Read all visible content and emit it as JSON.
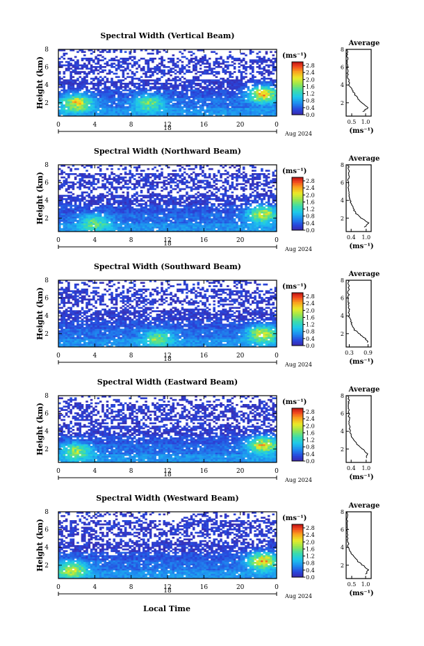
{
  "figure": {
    "date_label": "Aug 2024",
    "day_label": "18",
    "xlabel": "Local Time",
    "ylabel": "Height (km)",
    "colorbar_unit": "(ms⁻¹)",
    "avg_title": "Average",
    "avg_xlabel": "(ms⁻¹)"
  },
  "chart_data": [
    {
      "type": "heatmap",
      "title": "Spectral Width (Vertical Beam)",
      "x_ticks": [
        "0",
        "4",
        "8",
        "12",
        "16",
        "20",
        "0"
      ],
      "y_ticks": [
        "2",
        "4",
        "6",
        "8"
      ],
      "xlim": [
        0,
        24
      ],
      "ylim": [
        0.5,
        8
      ],
      "colorbar_ticks": [
        "0.0",
        "0.4",
        "0.8",
        "1.2",
        "1.6",
        "2.0",
        "2.4",
        "2.8"
      ],
      "colorbar_range": [
        0,
        3.0
      ],
      "avg_ticks": [
        "0.5",
        "1.0"
      ],
      "avg_xlim": [
        0.3,
        1.2
      ],
      "avg_profile": [
        {
          "h": 1.0,
          "v": 0.9
        },
        {
          "h": 1.5,
          "v": 1.1
        },
        {
          "h": 2.0,
          "v": 0.85
        },
        {
          "h": 2.5,
          "v": 0.7
        },
        {
          "h": 3.0,
          "v": 0.6
        },
        {
          "h": 3.5,
          "v": 0.5
        },
        {
          "h": 4.0,
          "v": 0.42
        },
        {
          "h": 5.0,
          "v": 0.36
        },
        {
          "h": 6.0,
          "v": 0.34
        },
        {
          "h": 7.0,
          "v": 0.34
        },
        {
          "h": 8.0,
          "v": 0.33
        }
      ],
      "hot_spots": [
        {
          "t": 2,
          "h": 2.0,
          "v": 1.9
        },
        {
          "t": 22.5,
          "h": 3.0,
          "v": 2.2
        },
        {
          "t": 10,
          "h": 2.0,
          "v": 1.3
        }
      ]
    },
    {
      "type": "heatmap",
      "title": "Spectral Width (Northward Beam)",
      "x_ticks": [
        "0",
        "4",
        "8",
        "12",
        "16",
        "20",
        "0"
      ],
      "y_ticks": [
        "2",
        "4",
        "6",
        "8"
      ],
      "xlim": [
        0,
        24
      ],
      "ylim": [
        0.5,
        8
      ],
      "colorbar_ticks": [
        "0.0",
        "0.4",
        "0.8",
        "1.2",
        "1.6",
        "2.0",
        "2.4",
        "2.8"
      ],
      "colorbar_range": [
        0,
        3.0
      ],
      "avg_ticks": [
        "0.4",
        "1.0"
      ],
      "avg_xlim": [
        0.2,
        1.2
      ],
      "avg_profile": [
        {
          "h": 1.0,
          "v": 0.95
        },
        {
          "h": 1.5,
          "v": 1.1
        },
        {
          "h": 2.0,
          "v": 0.8
        },
        {
          "h": 2.5,
          "v": 0.6
        },
        {
          "h": 3.0,
          "v": 0.5
        },
        {
          "h": 3.5,
          "v": 0.42
        },
        {
          "h": 4.0,
          "v": 0.36
        },
        {
          "h": 5.0,
          "v": 0.3
        },
        {
          "h": 6.0,
          "v": 0.28
        },
        {
          "h": 7.0,
          "v": 0.3
        },
        {
          "h": 8.0,
          "v": 0.3
        }
      ],
      "hot_spots": [
        {
          "t": 22.5,
          "h": 2.5,
          "v": 1.8
        },
        {
          "t": 4,
          "h": 1.5,
          "v": 1.1
        }
      ]
    },
    {
      "type": "heatmap",
      "title": "Spectral Width (Southward Beam)",
      "x_ticks": [
        "0",
        "4",
        "8",
        "12",
        "16",
        "20",
        "0"
      ],
      "y_ticks": [
        "2",
        "4",
        "6",
        "8"
      ],
      "xlim": [
        0,
        24
      ],
      "ylim": [
        0.5,
        8
      ],
      "colorbar_ticks": [
        "0.0",
        "0.4",
        "0.8",
        "1.2",
        "1.6",
        "2.0",
        "2.4",
        "2.8"
      ],
      "colorbar_range": [
        0,
        3.0
      ],
      "avg_ticks": [
        "0.3",
        "0.9"
      ],
      "avg_xlim": [
        0.2,
        1.0
      ],
      "avg_profile": [
        {
          "h": 1.0,
          "v": 0.9
        },
        {
          "h": 1.5,
          "v": 0.8
        },
        {
          "h": 2.0,
          "v": 0.6
        },
        {
          "h": 2.5,
          "v": 0.45
        },
        {
          "h": 3.0,
          "v": 0.38
        },
        {
          "h": 3.5,
          "v": 0.33
        },
        {
          "h": 4.0,
          "v": 0.3
        },
        {
          "h": 5.0,
          "v": 0.28
        },
        {
          "h": 6.0,
          "v": 0.27
        },
        {
          "h": 7.0,
          "v": 0.28
        },
        {
          "h": 8.0,
          "v": 0.27
        }
      ],
      "hot_spots": [
        {
          "t": 22.5,
          "h": 2.0,
          "v": 1.8
        },
        {
          "t": 11,
          "h": 1.5,
          "v": 1.2
        }
      ]
    },
    {
      "type": "heatmap",
      "title": "Spectral Width (Eastward Beam)",
      "x_ticks": [
        "0",
        "4",
        "8",
        "12",
        "16",
        "20",
        "0"
      ],
      "y_ticks": [
        "2",
        "4",
        "6",
        "8"
      ],
      "xlim": [
        0,
        24
      ],
      "ylim": [
        0.5,
        8
      ],
      "colorbar_ticks": [
        "0.0",
        "0.4",
        "0.8",
        "1.2",
        "1.6",
        "2.0",
        "2.4",
        "2.8"
      ],
      "colorbar_range": [
        0,
        3.0
      ],
      "avg_ticks": [
        "0.4",
        "1.0"
      ],
      "avg_xlim": [
        0.2,
        1.2
      ],
      "avg_profile": [
        {
          "h": 1.0,
          "v": 1.0
        },
        {
          "h": 1.5,
          "v": 1.05
        },
        {
          "h": 2.0,
          "v": 0.85
        },
        {
          "h": 2.5,
          "v": 0.65
        },
        {
          "h": 3.0,
          "v": 0.5
        },
        {
          "h": 3.5,
          "v": 0.42
        },
        {
          "h": 4.0,
          "v": 0.36
        },
        {
          "h": 5.0,
          "v": 0.32
        },
        {
          "h": 6.0,
          "v": 0.31
        },
        {
          "h": 7.0,
          "v": 0.3
        },
        {
          "h": 8.0,
          "v": 0.3
        }
      ],
      "hot_spots": [
        {
          "t": 22.5,
          "h": 2.5,
          "v": 2.0
        },
        {
          "t": 2,
          "h": 1.8,
          "v": 1.4
        }
      ]
    },
    {
      "type": "heatmap",
      "title": "Spectral Width (Westward Beam)",
      "x_ticks": [
        "0",
        "4",
        "8",
        "12",
        "16",
        "20",
        "0"
      ],
      "y_ticks": [
        "2",
        "4",
        "6",
        "8"
      ],
      "xlim": [
        0,
        24
      ],
      "ylim": [
        0.5,
        8
      ],
      "colorbar_ticks": [
        "0.0",
        "0.4",
        "0.8",
        "1.2",
        "1.6",
        "2.0",
        "2.4",
        "2.8"
      ],
      "colorbar_range": [
        0,
        3.0
      ],
      "avg_ticks": [
        "0.5",
        "1.0"
      ],
      "avg_xlim": [
        0.3,
        1.2
      ],
      "avg_profile": [
        {
          "h": 1.0,
          "v": 1.0
        },
        {
          "h": 1.5,
          "v": 1.1
        },
        {
          "h": 2.0,
          "v": 0.9
        },
        {
          "h": 2.5,
          "v": 0.7
        },
        {
          "h": 3.0,
          "v": 0.55
        },
        {
          "h": 3.5,
          "v": 0.45
        },
        {
          "h": 4.0,
          "v": 0.38
        },
        {
          "h": 5.0,
          "v": 0.35
        },
        {
          "h": 6.0,
          "v": 0.34
        },
        {
          "h": 7.0,
          "v": 0.34
        },
        {
          "h": 8.0,
          "v": 0.34
        }
      ],
      "hot_spots": [
        {
          "t": 22.5,
          "h": 2.5,
          "v": 2.1
        },
        {
          "t": 1.5,
          "h": 1.5,
          "v": 1.6
        }
      ]
    }
  ]
}
